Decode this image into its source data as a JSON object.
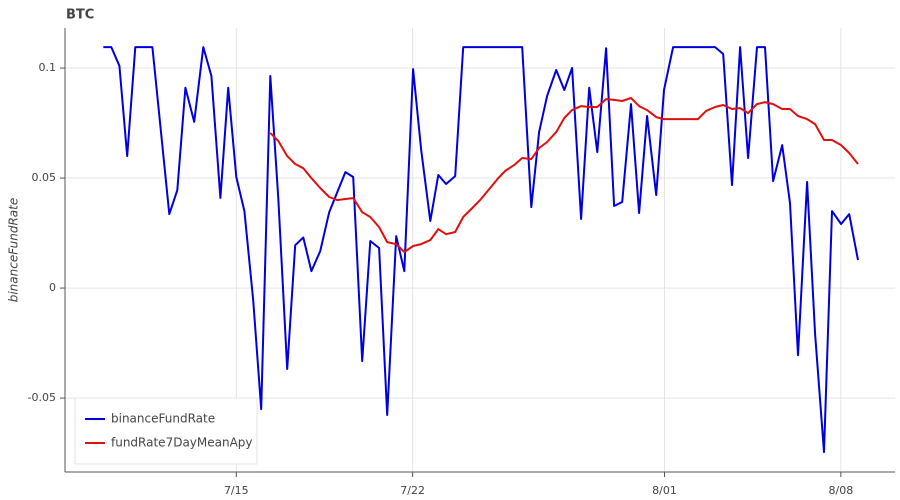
{
  "chart_data": {
    "type": "line",
    "title": "BTC",
    "y_label": "binanceFundRate",
    "xlim": [
      8.2,
      41.15
    ],
    "ylim": [
      -0.0836,
      0.1182
    ],
    "xticks": [
      {
        "value": 15,
        "label": "7/15"
      },
      {
        "value": 22,
        "label": "7/22"
      },
      {
        "value": 32,
        "label": "8/01"
      },
      {
        "value": 39,
        "label": "8/08"
      }
    ],
    "yticks": [
      -0.05,
      0,
      0.05,
      0.1
    ],
    "grid": true,
    "legend": "bottom-left",
    "series": [
      {
        "name": "binanceFundRate",
        "color": "#0000dd",
        "x": [
          9.72,
          10.04,
          10.36,
          10.67,
          10.99,
          11.67,
          12.34,
          12.66,
          12.98,
          13.33,
          13.69,
          14.01,
          14.37,
          14.68,
          15.0,
          15.32,
          15.67,
          15.99,
          16.35,
          16.67,
          17.02,
          17.34,
          17.66,
          17.98,
          18.33,
          18.69,
          19.01,
          19.33,
          19.64,
          20.0,
          20.32,
          20.67,
          20.99,
          21.35,
          21.67,
          22.02,
          22.34,
          22.7,
          23.02,
          23.33,
          23.69,
          24.01,
          26.35,
          26.71,
          27.02,
          27.34,
          27.7,
          28.02,
          28.33,
          28.69,
          29.01,
          29.33,
          29.68,
          30.0,
          30.32,
          30.67,
          30.99,
          31.31,
          31.67,
          31.98,
          32.34,
          34.01,
          34.33,
          34.68,
          35.0,
          35.32,
          35.67,
          35.99,
          36.31,
          36.67,
          36.98,
          37.3,
          37.66,
          37.98,
          38.33,
          38.65,
          39.01,
          39.33,
          39.68
        ],
        "values": [
          0.1095,
          0.1095,
          0.101,
          0.06,
          0.1095,
          0.1095,
          0.0336,
          0.0445,
          0.091,
          0.0755,
          0.1095,
          0.0964,
          0.041,
          0.091,
          0.0505,
          0.035,
          -0.0055,
          -0.055,
          0.0964,
          0.04,
          -0.0368,
          0.0195,
          0.023,
          0.0077,
          0.0168,
          0.0345,
          0.0436,
          0.0527,
          0.0505,
          -0.0332,
          0.0214,
          0.0182,
          -0.0577,
          0.0236,
          0.0077,
          0.0995,
          0.0627,
          0.0305,
          0.0514,
          0.0473,
          0.0509,
          0.1095,
          0.1095,
          0.0368,
          0.0709,
          0.0873,
          0.0991,
          0.09,
          0.1,
          0.0314,
          0.091,
          0.0618,
          0.109,
          0.0373,
          0.0391,
          0.0836,
          0.0341,
          0.0782,
          0.0423,
          0.09,
          0.1095,
          0.1095,
          0.1064,
          0.0468,
          0.1095,
          0.0591,
          0.1095,
          0.1095,
          0.0486,
          0.065,
          0.0386,
          -0.0305,
          0.0482,
          -0.0209,
          -0.0745,
          0.035,
          0.0291,
          0.0336,
          0.0127
        ]
      },
      {
        "name": "fundRate7DayMeanApy",
        "color": "#e01010",
        "x": [
          16.35,
          16.67,
          17.02,
          17.34,
          17.66,
          17.98,
          18.33,
          18.69,
          19.01,
          19.33,
          19.64,
          20.0,
          20.32,
          20.67,
          20.99,
          21.35,
          21.67,
          22.02,
          22.34,
          22.7,
          23.02,
          23.33,
          23.69,
          24.01,
          24.37,
          24.68,
          25.04,
          25.36,
          25.67,
          26.03,
          26.35,
          26.71,
          27.02,
          27.34,
          27.7,
          28.02,
          28.33,
          28.69,
          29.01,
          29.33,
          29.68,
          30.0,
          30.32,
          30.67,
          30.99,
          31.31,
          31.67,
          31.98,
          32.34,
          32.7,
          33.02,
          33.33,
          33.65,
          34.01,
          34.33,
          34.68,
          35.0,
          35.32,
          35.67,
          35.99,
          36.31,
          36.67,
          36.98,
          37.3,
          37.66,
          37.98,
          38.33,
          38.65,
          39.01,
          39.33,
          39.68
        ],
        "values": [
          0.0705,
          0.0668,
          0.06,
          0.0564,
          0.0545,
          0.05,
          0.0455,
          0.0414,
          0.04,
          0.0405,
          0.0409,
          0.0345,
          0.0323,
          0.0277,
          0.0209,
          0.02,
          0.0164,
          0.0191,
          0.02,
          0.0218,
          0.0268,
          0.0245,
          0.0255,
          0.0323,
          0.0364,
          0.04,
          0.045,
          0.0495,
          0.0532,
          0.0559,
          0.0591,
          0.0586,
          0.0636,
          0.0664,
          0.0709,
          0.0773,
          0.0809,
          0.0827,
          0.0823,
          0.0823,
          0.0859,
          0.0855,
          0.085,
          0.0864,
          0.0827,
          0.0809,
          0.0777,
          0.0768,
          0.0768,
          0.0768,
          0.0768,
          0.0768,
          0.0805,
          0.0823,
          0.0832,
          0.0814,
          0.0818,
          0.0795,
          0.0836,
          0.0845,
          0.0836,
          0.0814,
          0.0814,
          0.0782,
          0.0768,
          0.0745,
          0.0673,
          0.0673,
          0.065,
          0.0614,
          0.0564
        ]
      }
    ]
  }
}
